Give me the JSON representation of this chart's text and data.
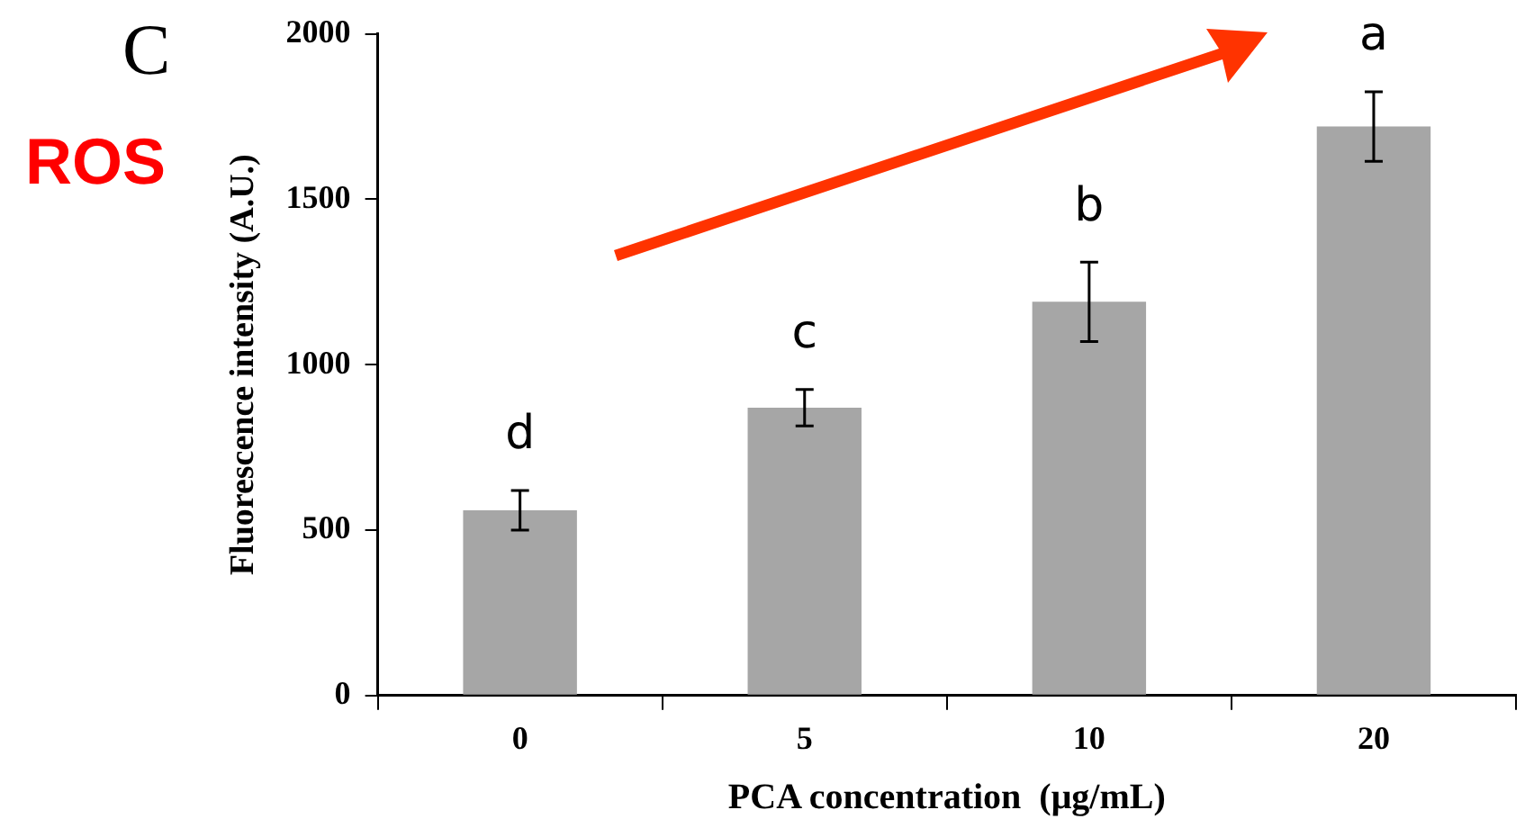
{
  "chart_data": {
    "type": "bar",
    "xlabel": "PCA concentration  (μg/mL)",
    "ylabel": "Fluorescence intensity (A.U.)",
    "categories": [
      "0",
      "5",
      "10",
      "20"
    ],
    "values": [
      560,
      870,
      1190,
      1720
    ],
    "errors": [
      60,
      55,
      120,
      105
    ],
    "color": "#a6a6a6",
    "ylim": [
      0,
      2000
    ],
    "yticks": [
      0,
      500,
      1000,
      1500,
      2000
    ],
    "grid": false,
    "legend": false,
    "annotations": [
      "C",
      "ROS",
      "d",
      "c",
      "b",
      "a"
    ]
  }
}
